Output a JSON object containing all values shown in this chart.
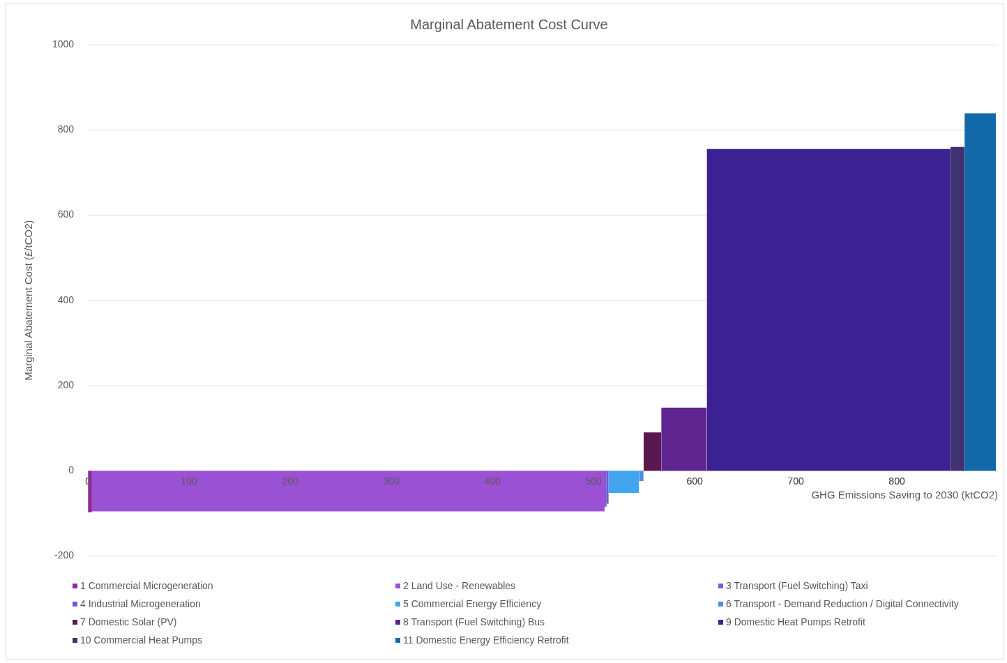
{
  "chart_data": {
    "type": "area",
    "title": "Marginal Abatement Cost Curve",
    "xlabel": "GHG Emissions Saving to 2030 (ktCO2)",
    "ylabel": "Marginal Abatement Cost (£/tCO2)",
    "xlim": [
      0,
      900
    ],
    "xticks": [
      0,
      100,
      200,
      300,
      400,
      500,
      600,
      700,
      800
    ],
    "ylim": [
      -200,
      1000
    ],
    "yticks": [
      -200,
      0,
      200,
      400,
      600,
      800,
      1000
    ],
    "grid": "y",
    "legend": "bottom",
    "series": [
      {
        "name": "1 Commercial Microgeneration",
        "color": "#8e2a96",
        "x": [
          0,
          4
        ],
        "values": [
          -97,
          -97
        ]
      },
      {
        "name": "2 Land Use - Renewables",
        "color": "#9b51d4",
        "x": [
          4,
          511
        ],
        "values": [
          -95,
          -95
        ]
      },
      {
        "name": "3 Transport (Fuel Switching) Taxi",
        "color": "#7e5ad8",
        "x": [
          511,
          513
        ],
        "values": [
          -84,
          -84
        ]
      },
      {
        "name": "4 Industrial Microgeneration",
        "color": "#6a5fcf",
        "x": [
          513,
          515
        ],
        "values": [
          -77,
          -77
        ]
      },
      {
        "name": "5 Commercial Energy Efficiency",
        "color": "#41a4ef",
        "x": [
          515,
          545
        ],
        "values": [
          -52,
          -52
        ]
      },
      {
        "name": "6 Transport - Demand Reduction / Digital Connectivity",
        "color": "#4f8ee0",
        "x": [
          545,
          549.5
        ],
        "values": [
          -24,
          -24
        ]
      },
      {
        "name": "7 Domestic Solar (PV)",
        "color": "#5a1850",
        "x": [
          549.5,
          567
        ],
        "values": [
          90,
          90
        ]
      },
      {
        "name": "8 Transport (Fuel Switching) Bus",
        "color": "#5e2590",
        "x": [
          567,
          612
        ],
        "values": [
          148,
          148
        ]
      },
      {
        "name": "9 Domestic Heat Pumps Retrofit",
        "color": "#3c2192",
        "x": [
          612,
          853
        ],
        "values": [
          755,
          755
        ]
      },
      {
        "name": "10 Commercial Heat Pumps",
        "color": "#3e3370",
        "x": [
          853,
          867
        ],
        "values": [
          760,
          760
        ]
      },
      {
        "name": "11 Domestic Energy Efficiency Retrofit",
        "color": "#1268a8",
        "x": [
          867,
          898
        ],
        "values": [
          839,
          839
        ]
      }
    ]
  }
}
